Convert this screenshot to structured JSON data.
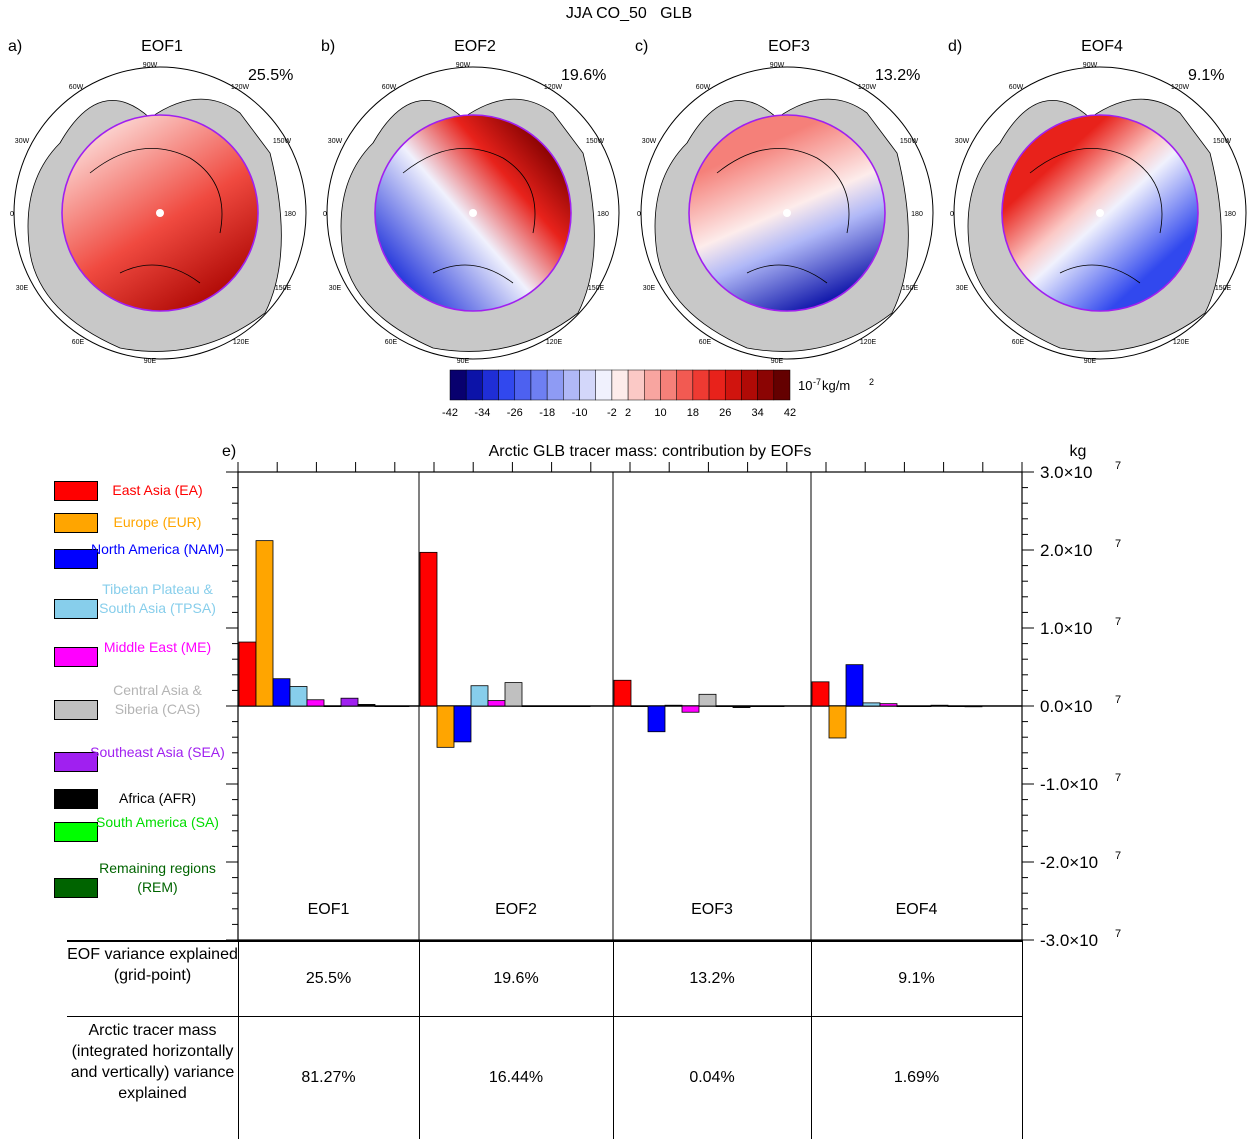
{
  "figure": {
    "suptitle": "JJA CO_50   GLB"
  },
  "panels": [
    {
      "letter": "a)",
      "title": "EOF1",
      "variance": "25.5%"
    },
    {
      "letter": "b)",
      "title": "EOF2",
      "variance": "19.6%"
    },
    {
      "letter": "c)",
      "title": "EOF3",
      "variance": "13.2%"
    },
    {
      "letter": "d)",
      "title": "EOF4",
      "variance": "9.1%"
    }
  ],
  "map_labels": {
    "lon_90w": "90W",
    "lon_60w": "60W",
    "lon_120w": "120W",
    "lon_30w": "30W",
    "lon_150w": "150W",
    "lon_0": "0",
    "lon_180": "180",
    "lon_30e": "30E",
    "lon_150e": "150E",
    "lon_60e": "60E",
    "lon_120e": "120E",
    "lon_90e": "90E"
  },
  "colorbar": {
    "unit_prefix": "10",
    "unit_exp": "-7",
    "unit_suffix": " kg/m",
    "unit_sq": "2",
    "tick_labels": [
      "-42",
      "-34",
      "-26",
      "-18",
      "-10",
      "-2",
      "2",
      "10",
      "18",
      "26",
      "34",
      "42"
    ],
    "colors": [
      "#08006e",
      "#0c13a8",
      "#1f2ed6",
      "#3148ee",
      "#4d61f0",
      "#6e7ff2",
      "#8e9bf4",
      "#b0b8f7",
      "#d3d7fa",
      "#f0f1fd",
      "#fdeceb",
      "#fbc9c6",
      "#f8a5a0",
      "#f58079",
      "#f25a52",
      "#ee3a32",
      "#e8221b",
      "#d0140e",
      "#b00a06",
      "#8b0403",
      "#640000"
    ]
  },
  "chart_data": {
    "type": "bar",
    "panel_letter": "e)",
    "title": "Arctic GLB tracer mass: contribution by EOFs",
    "ylabel": "kg",
    "ylim": [
      -30000000,
      30000000
    ],
    "y_tick_labels": [
      "3.0×10",
      "2.0×10",
      "1.0×10",
      "0.0×10",
      "-1.0×10",
      "-2.0×10",
      "-3.0×10"
    ],
    "y_tick_exp": "7",
    "y_tick_values": [
      30000000,
      20000000,
      10000000,
      0,
      -10000000,
      -20000000,
      -30000000
    ],
    "categories": [
      "EOF1",
      "EOF2",
      "EOF3",
      "EOF4"
    ],
    "series": [
      {
        "name": "East Asia (EA)",
        "color": "#ff0000",
        "values": [
          8200000,
          19700000,
          3300000,
          3100000
        ]
      },
      {
        "name": "Europe (EUR)",
        "color": "#ffa500",
        "values": [
          21200000,
          -5300000,
          0,
          -4100000
        ]
      },
      {
        "name": "North America (NAM)",
        "color": "#0000ff",
        "values": [
          3500000,
          -4600000,
          -3300000,
          5300000
        ]
      },
      {
        "name": "Tibetan Plateau & South Asia (TPSA)",
        "color": "#87ceeb",
        "values": [
          2500000,
          2600000,
          100000,
          400000
        ]
      },
      {
        "name": "Middle East (ME)",
        "color": "#ff00ff",
        "values": [
          800000,
          700000,
          -800000,
          300000
        ]
      },
      {
        "name": "Central Asia & Siberia (CAS)",
        "color": "#c0c0c0",
        "values": [
          0,
          3000000,
          1500000,
          0
        ]
      },
      {
        "name": "Southeast Asia (SEA)",
        "color": "#a020f0",
        "values": [
          1000000,
          0,
          0,
          0
        ]
      },
      {
        "name": "Africa (AFR)",
        "color": "#000000",
        "values": [
          200000,
          0,
          -200000,
          100000
        ]
      },
      {
        "name": "South America (SA)",
        "color": "#00ff00",
        "values": [
          0,
          0,
          0,
          0
        ]
      },
      {
        "name": "Remaining regions (REM)",
        "color": "#006400",
        "values": [
          0,
          0,
          0,
          -100000
        ]
      }
    ],
    "legend": [
      {
        "label": "East Asia (EA)",
        "color": "#ff0000",
        "text_color": "#ff0000"
      },
      {
        "label": "Europe (EUR)",
        "color": "#ffa500",
        "text_color": "#ffa500"
      },
      {
        "label": "North America (NAM)",
        "color": "#0000ff",
        "text_color": "#0000ff"
      },
      {
        "label": "Tibetan Plateau & South Asia (TPSA)",
        "color": "#87ceeb",
        "text_color": "#87ceeb"
      },
      {
        "label": "Middle East (ME)",
        "color": "#ff00ff",
        "text_color": "#ff00ff"
      },
      {
        "label": "Central Asia & Siberia (CAS)",
        "color": "#c0c0c0",
        "text_color": "#b4b4b4"
      },
      {
        "label": "Southeast Asia (SEA)",
        "color": "#a020f0",
        "text_color": "#a020f0"
      },
      {
        "label": "Africa (AFR)",
        "color": "#000000",
        "text_color": "#000000"
      },
      {
        "label": "South America (SA)",
        "color": "#00ff00",
        "text_color": "#00dd00"
      },
      {
        "label": "Remaining regions (REM)",
        "color": "#006400",
        "text_color": "#006400"
      }
    ],
    "legend_placement": "left",
    "table": {
      "row1_header": "EOF variance explained (grid-point)",
      "row1_values": [
        "25.5%",
        "19.6%",
        "13.2%",
        "9.1%"
      ],
      "row2_header": "Arctic tracer mass (integrated horizontally and vertically) variance explained",
      "row2_values": [
        "81.27%",
        "16.44%",
        "0.04%",
        "1.69%"
      ]
    }
  }
}
